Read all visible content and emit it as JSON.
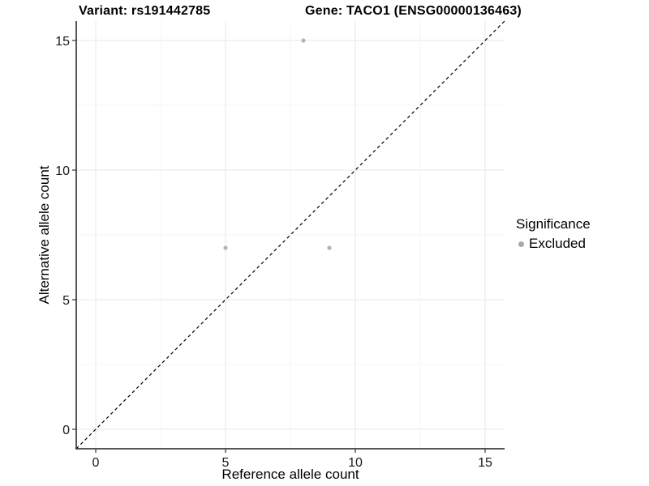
{
  "header": {
    "title_variant": "Variant: rs191442785",
    "title_gene": "Gene: TACO1 (ENSG00000136463)"
  },
  "chart_data": {
    "type": "scatter",
    "xlabel": "Reference allele count",
    "ylabel": "Alternative allele count",
    "x_ticks": [
      0,
      5,
      10,
      15
    ],
    "y_ticks": [
      0,
      5,
      10,
      15
    ],
    "xlim": [
      -0.75,
      15.75
    ],
    "ylim": [
      -0.75,
      15.75
    ],
    "grid": "major and minor, light gray, on white background",
    "identity_line": "dashed black y = x diagonal",
    "series": [
      {
        "name": "Excluded",
        "color": "#b3b3b3",
        "marker": "circle",
        "points": [
          [
            8,
            15
          ],
          [
            5,
            7
          ],
          [
            9,
            7
          ]
        ]
      }
    ],
    "legend": {
      "title": "Significance",
      "position": "right",
      "items": [
        {
          "label": "Excluded",
          "color": "#a9a9a9",
          "marker": "circle"
        }
      ]
    }
  },
  "colors": {
    "background": "#ffffff",
    "grid_major": "#e7e7e7",
    "grid_minor": "#f4f4f4",
    "axis_line": "#1f1f1f",
    "tick_mark": "#333333",
    "tick_text": "#1a1a1a",
    "identity_line": "#000000"
  }
}
